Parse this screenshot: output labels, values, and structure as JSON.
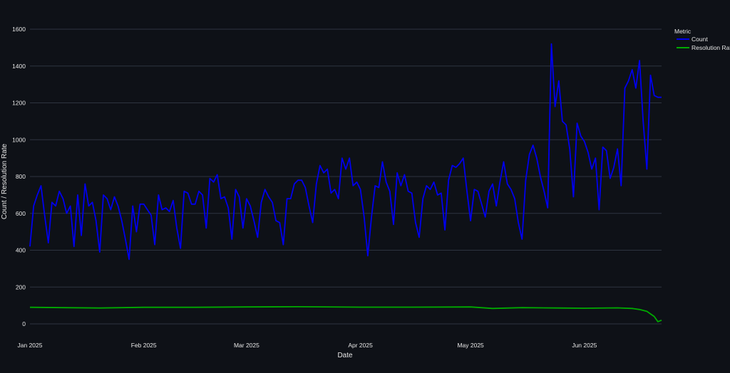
{
  "chart_data": {
    "type": "line",
    "xlabel": "Date",
    "ylabel": "Count / Resolution Rate",
    "ylim": [
      0,
      1650
    ],
    "xlim": [
      "2025-01-01",
      "2025-06-18"
    ],
    "yticks": [
      0,
      200,
      400,
      600,
      800,
      1000,
      1200,
      1400,
      1600
    ],
    "xticks": [
      {
        "date": "2025-01-01",
        "label": "Jan 2025"
      },
      {
        "date": "2025-02-01",
        "label": "Feb 2025"
      },
      {
        "date": "2025-03-01",
        "label": "Mar 2025"
      },
      {
        "date": "2025-04-01",
        "label": "Apr 2025"
      },
      {
        "date": "2025-05-01",
        "label": "May 2025"
      },
      {
        "date": "2025-06-01",
        "label": "Jun 2025"
      }
    ],
    "grid": true,
    "legend": {
      "title": "Metric",
      "placement": "top-right"
    },
    "series": [
      {
        "name": "Count",
        "color": "#0000ee",
        "points": [
          [
            "2025-01-01",
            420
          ],
          [
            "2025-01-02",
            640
          ],
          [
            "2025-01-03",
            700
          ],
          [
            "2025-01-04",
            750
          ],
          [
            "2025-01-05",
            590
          ],
          [
            "2025-01-06",
            440
          ],
          [
            "2025-01-07",
            660
          ],
          [
            "2025-01-08",
            640
          ],
          [
            "2025-01-09",
            720
          ],
          [
            "2025-01-10",
            680
          ],
          [
            "2025-01-11",
            600
          ],
          [
            "2025-01-12",
            640
          ],
          [
            "2025-01-13",
            420
          ],
          [
            "2025-01-14",
            700
          ],
          [
            "2025-01-15",
            480
          ],
          [
            "2025-01-16",
            760
          ],
          [
            "2025-01-17",
            640
          ],
          [
            "2025-01-18",
            660
          ],
          [
            "2025-01-19",
            560
          ],
          [
            "2025-01-20",
            390
          ],
          [
            "2025-01-21",
            700
          ],
          [
            "2025-01-22",
            680
          ],
          [
            "2025-01-23",
            620
          ],
          [
            "2025-01-24",
            690
          ],
          [
            "2025-01-25",
            640
          ],
          [
            "2025-01-26",
            560
          ],
          [
            "2025-01-27",
            460
          ],
          [
            "2025-01-28",
            350
          ],
          [
            "2025-01-29",
            640
          ],
          [
            "2025-01-30",
            500
          ],
          [
            "2025-01-31",
            650
          ],
          [
            "2025-02-01",
            650
          ],
          [
            "2025-02-02",
            620
          ],
          [
            "2025-02-03",
            590
          ],
          [
            "2025-02-04",
            430
          ],
          [
            "2025-02-05",
            700
          ],
          [
            "2025-02-06",
            620
          ],
          [
            "2025-02-07",
            630
          ],
          [
            "2025-02-08",
            610
          ],
          [
            "2025-02-09",
            670
          ],
          [
            "2025-02-10",
            520
          ],
          [
            "2025-02-11",
            410
          ],
          [
            "2025-02-12",
            720
          ],
          [
            "2025-02-13",
            710
          ],
          [
            "2025-02-14",
            650
          ],
          [
            "2025-02-15",
            650
          ],
          [
            "2025-02-16",
            720
          ],
          [
            "2025-02-17",
            700
          ],
          [
            "2025-02-18",
            520
          ],
          [
            "2025-02-19",
            790
          ],
          [
            "2025-02-20",
            770
          ],
          [
            "2025-02-21",
            810
          ],
          [
            "2025-02-22",
            680
          ],
          [
            "2025-02-23",
            690
          ],
          [
            "2025-02-24",
            630
          ],
          [
            "2025-02-25",
            460
          ],
          [
            "2025-02-26",
            730
          ],
          [
            "2025-02-27",
            690
          ],
          [
            "2025-02-28",
            520
          ],
          [
            "2025-03-01",
            680
          ],
          [
            "2025-03-02",
            640
          ],
          [
            "2025-03-03",
            560
          ],
          [
            "2025-03-04",
            470
          ],
          [
            "2025-03-05",
            660
          ],
          [
            "2025-03-06",
            730
          ],
          [
            "2025-03-07",
            690
          ],
          [
            "2025-03-08",
            660
          ],
          [
            "2025-03-09",
            560
          ],
          [
            "2025-03-10",
            550
          ],
          [
            "2025-03-11",
            430
          ],
          [
            "2025-03-12",
            680
          ],
          [
            "2025-03-13",
            680
          ],
          [
            "2025-03-14",
            760
          ],
          [
            "2025-03-15",
            780
          ],
          [
            "2025-03-16",
            780
          ],
          [
            "2025-03-17",
            740
          ],
          [
            "2025-03-18",
            640
          ],
          [
            "2025-03-19",
            550
          ],
          [
            "2025-03-20",
            760
          ],
          [
            "2025-03-21",
            860
          ],
          [
            "2025-03-22",
            820
          ],
          [
            "2025-03-23",
            840
          ],
          [
            "2025-03-24",
            710
          ],
          [
            "2025-03-25",
            730
          ],
          [
            "2025-03-26",
            680
          ],
          [
            "2025-03-27",
            900
          ],
          [
            "2025-03-28",
            840
          ],
          [
            "2025-03-29",
            900
          ],
          [
            "2025-03-30",
            750
          ],
          [
            "2025-03-31",
            770
          ],
          [
            "2025-04-01",
            730
          ],
          [
            "2025-04-02",
            580
          ],
          [
            "2025-04-03",
            370
          ],
          [
            "2025-04-04",
            580
          ],
          [
            "2025-04-05",
            750
          ],
          [
            "2025-04-06",
            740
          ],
          [
            "2025-04-07",
            880
          ],
          [
            "2025-04-08",
            770
          ],
          [
            "2025-04-09",
            720
          ],
          [
            "2025-04-10",
            540
          ],
          [
            "2025-04-11",
            820
          ],
          [
            "2025-04-12",
            750
          ],
          [
            "2025-04-13",
            810
          ],
          [
            "2025-04-14",
            720
          ],
          [
            "2025-04-15",
            710
          ],
          [
            "2025-04-16",
            550
          ],
          [
            "2025-04-17",
            470
          ],
          [
            "2025-04-18",
            680
          ],
          [
            "2025-04-19",
            750
          ],
          [
            "2025-04-20",
            730
          ],
          [
            "2025-04-21",
            770
          ],
          [
            "2025-04-22",
            700
          ],
          [
            "2025-04-23",
            710
          ],
          [
            "2025-04-24",
            510
          ],
          [
            "2025-04-25",
            780
          ],
          [
            "2025-04-26",
            860
          ],
          [
            "2025-04-27",
            850
          ],
          [
            "2025-04-28",
            870
          ],
          [
            "2025-04-29",
            900
          ],
          [
            "2025-04-30",
            720
          ],
          [
            "2025-05-01",
            560
          ],
          [
            "2025-05-02",
            730
          ],
          [
            "2025-05-03",
            720
          ],
          [
            "2025-05-04",
            650
          ],
          [
            "2025-05-05",
            580
          ],
          [
            "2025-05-06",
            720
          ],
          [
            "2025-05-07",
            760
          ],
          [
            "2025-05-08",
            640
          ],
          [
            "2025-05-09",
            770
          ],
          [
            "2025-05-10",
            880
          ],
          [
            "2025-05-11",
            760
          ],
          [
            "2025-05-12",
            730
          ],
          [
            "2025-05-13",
            680
          ],
          [
            "2025-05-14",
            550
          ],
          [
            "2025-05-15",
            460
          ],
          [
            "2025-05-16",
            780
          ],
          [
            "2025-05-17",
            920
          ],
          [
            "2025-05-18",
            970
          ],
          [
            "2025-05-19",
            900
          ],
          [
            "2025-05-20",
            800
          ],
          [
            "2025-05-21",
            720
          ],
          [
            "2025-05-22",
            630
          ],
          [
            "2025-05-23",
            1520
          ],
          [
            "2025-05-24",
            1180
          ],
          [
            "2025-05-25",
            1320
          ],
          [
            "2025-05-26",
            1100
          ],
          [
            "2025-05-27",
            1080
          ],
          [
            "2025-05-28",
            950
          ],
          [
            "2025-05-29",
            690
          ],
          [
            "2025-05-30",
            1090
          ],
          [
            "2025-05-31",
            1020
          ],
          [
            "2025-06-01",
            990
          ],
          [
            "2025-06-02",
            930
          ],
          [
            "2025-06-03",
            840
          ],
          [
            "2025-06-04",
            900
          ],
          [
            "2025-06-05",
            620
          ],
          [
            "2025-06-06",
            960
          ],
          [
            "2025-06-07",
            940
          ],
          [
            "2025-06-08",
            790
          ],
          [
            "2025-06-09",
            850
          ],
          [
            "2025-06-10",
            950
          ],
          [
            "2025-06-11",
            750
          ],
          [
            "2025-06-12",
            1280
          ],
          [
            "2025-06-13",
            1320
          ],
          [
            "2025-06-14",
            1380
          ],
          [
            "2025-06-15",
            1280
          ],
          [
            "2025-06-16",
            1430
          ],
          [
            "2025-06-17",
            1100
          ],
          [
            "2025-06-18",
            840
          ],
          [
            "2025-06-19",
            1350
          ],
          [
            "2025-06-20",
            1240
          ],
          [
            "2025-06-21",
            1230
          ],
          [
            "2025-06-22",
            1230
          ]
        ]
      },
      {
        "name": "Resolution Rate",
        "color": "#00aa00",
        "points": [
          [
            "2025-01-01",
            90
          ],
          [
            "2025-01-10",
            88
          ],
          [
            "2025-01-20",
            86
          ],
          [
            "2025-02-01",
            90
          ],
          [
            "2025-02-15",
            90
          ],
          [
            "2025-03-01",
            92
          ],
          [
            "2025-03-15",
            93
          ],
          [
            "2025-04-01",
            91
          ],
          [
            "2025-04-15",
            91
          ],
          [
            "2025-05-01",
            92
          ],
          [
            "2025-05-07",
            84
          ],
          [
            "2025-05-15",
            88
          ],
          [
            "2025-05-25",
            86
          ],
          [
            "2025-06-01",
            85
          ],
          [
            "2025-06-10",
            87
          ],
          [
            "2025-06-14",
            84
          ],
          [
            "2025-06-16",
            78
          ],
          [
            "2025-06-18",
            68
          ],
          [
            "2025-06-20",
            40
          ],
          [
            "2025-06-21",
            12
          ],
          [
            "2025-06-22",
            20
          ]
        ]
      }
    ]
  }
}
